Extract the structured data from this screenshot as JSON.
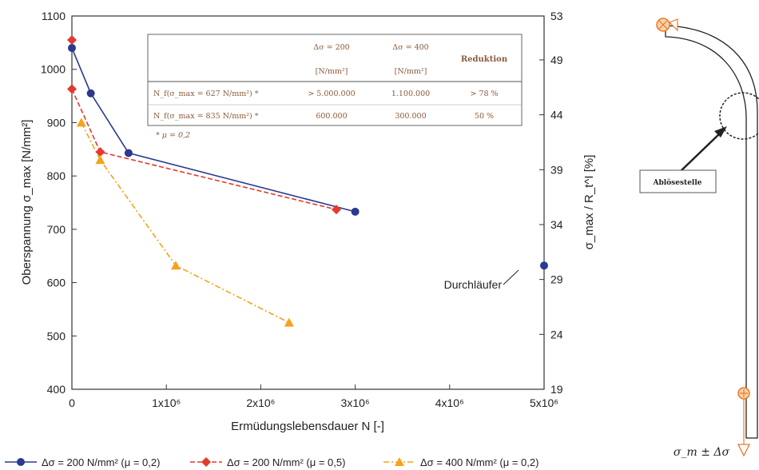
{
  "chart_data": {
    "type": "line",
    "xlabel": "Ermüdungslebensdauer N [-]",
    "ylabel": "Oberspannung σ_max [N/mm²]",
    "y2label": "σ_max / R_t^I [%]",
    "xlim": [
      0,
      5000000
    ],
    "ylim": [
      400,
      1100
    ],
    "y2lim": [
      19,
      53
    ],
    "x_ticks": [
      "0",
      "1x10⁶",
      "2x10⁶",
      "3x10⁶",
      "4x10⁶",
      "5x10⁶"
    ],
    "y_ticks": [
      "400",
      "500",
      "600",
      "700",
      "800",
      "900",
      "1000",
      "1100"
    ],
    "y2_ticks": [
      "19",
      "24",
      "29",
      "34",
      "39",
      "44",
      "49",
      "53"
    ],
    "grid": false,
    "legend_position": "bottom",
    "series": [
      {
        "name": "Δσ = 200 N/mm² (μ = 0,2)",
        "color": "#2b3990",
        "marker": "circle",
        "line": "solid",
        "x": [
          0,
          200000,
          600000,
          3000000
        ],
        "y": [
          1040,
          955,
          843,
          733
        ]
      },
      {
        "name": "Δσ = 200 N/mm² (μ = 0,5)",
        "color": "#e23a2e",
        "marker": "diamond",
        "line": "dashed",
        "x": [
          0,
          300000,
          2800000
        ],
        "y": [
          963,
          845,
          737
        ]
      },
      {
        "name": "Δσ = 400 N/mm² (μ = 0,2)",
        "color": "#f6a21c",
        "marker": "triangle",
        "line": "dashdot",
        "x": [
          100000,
          300000,
          1100000,
          2300000
        ],
        "y": [
          900,
          830,
          632,
          525
        ]
      }
    ],
    "extra_points": [
      {
        "series": 1,
        "marker": "diamond",
        "color": "#e23a2e",
        "x": 0,
        "y": 1055
      },
      {
        "series": 0,
        "marker": "circle",
        "color": "#2b3990",
        "x": 5000000,
        "y": 632,
        "label": "Durchläufer"
      }
    ],
    "table": {
      "header": [
        "Δσ = 200",
        "Δσ = 400",
        "Reduktion"
      ],
      "units": [
        "[N/mm²]",
        "[N/mm²]"
      ],
      "rows": [
        {
          "label": "N_f(σ_max = 627 N/mm²) *",
          "values": [
            "> 5.000.000",
            "1.100.000",
            "> 78 %"
          ]
        },
        {
          "label": "N_f(σ_max = 835 N/mm²) *",
          "values": [
            "600.000",
            "300.000",
            "50 %"
          ]
        }
      ],
      "footnote": "* μ = 0,2"
    }
  },
  "diagram": {
    "callout": "Ablösestelle",
    "load_label": "σ_m ± Δσ"
  }
}
